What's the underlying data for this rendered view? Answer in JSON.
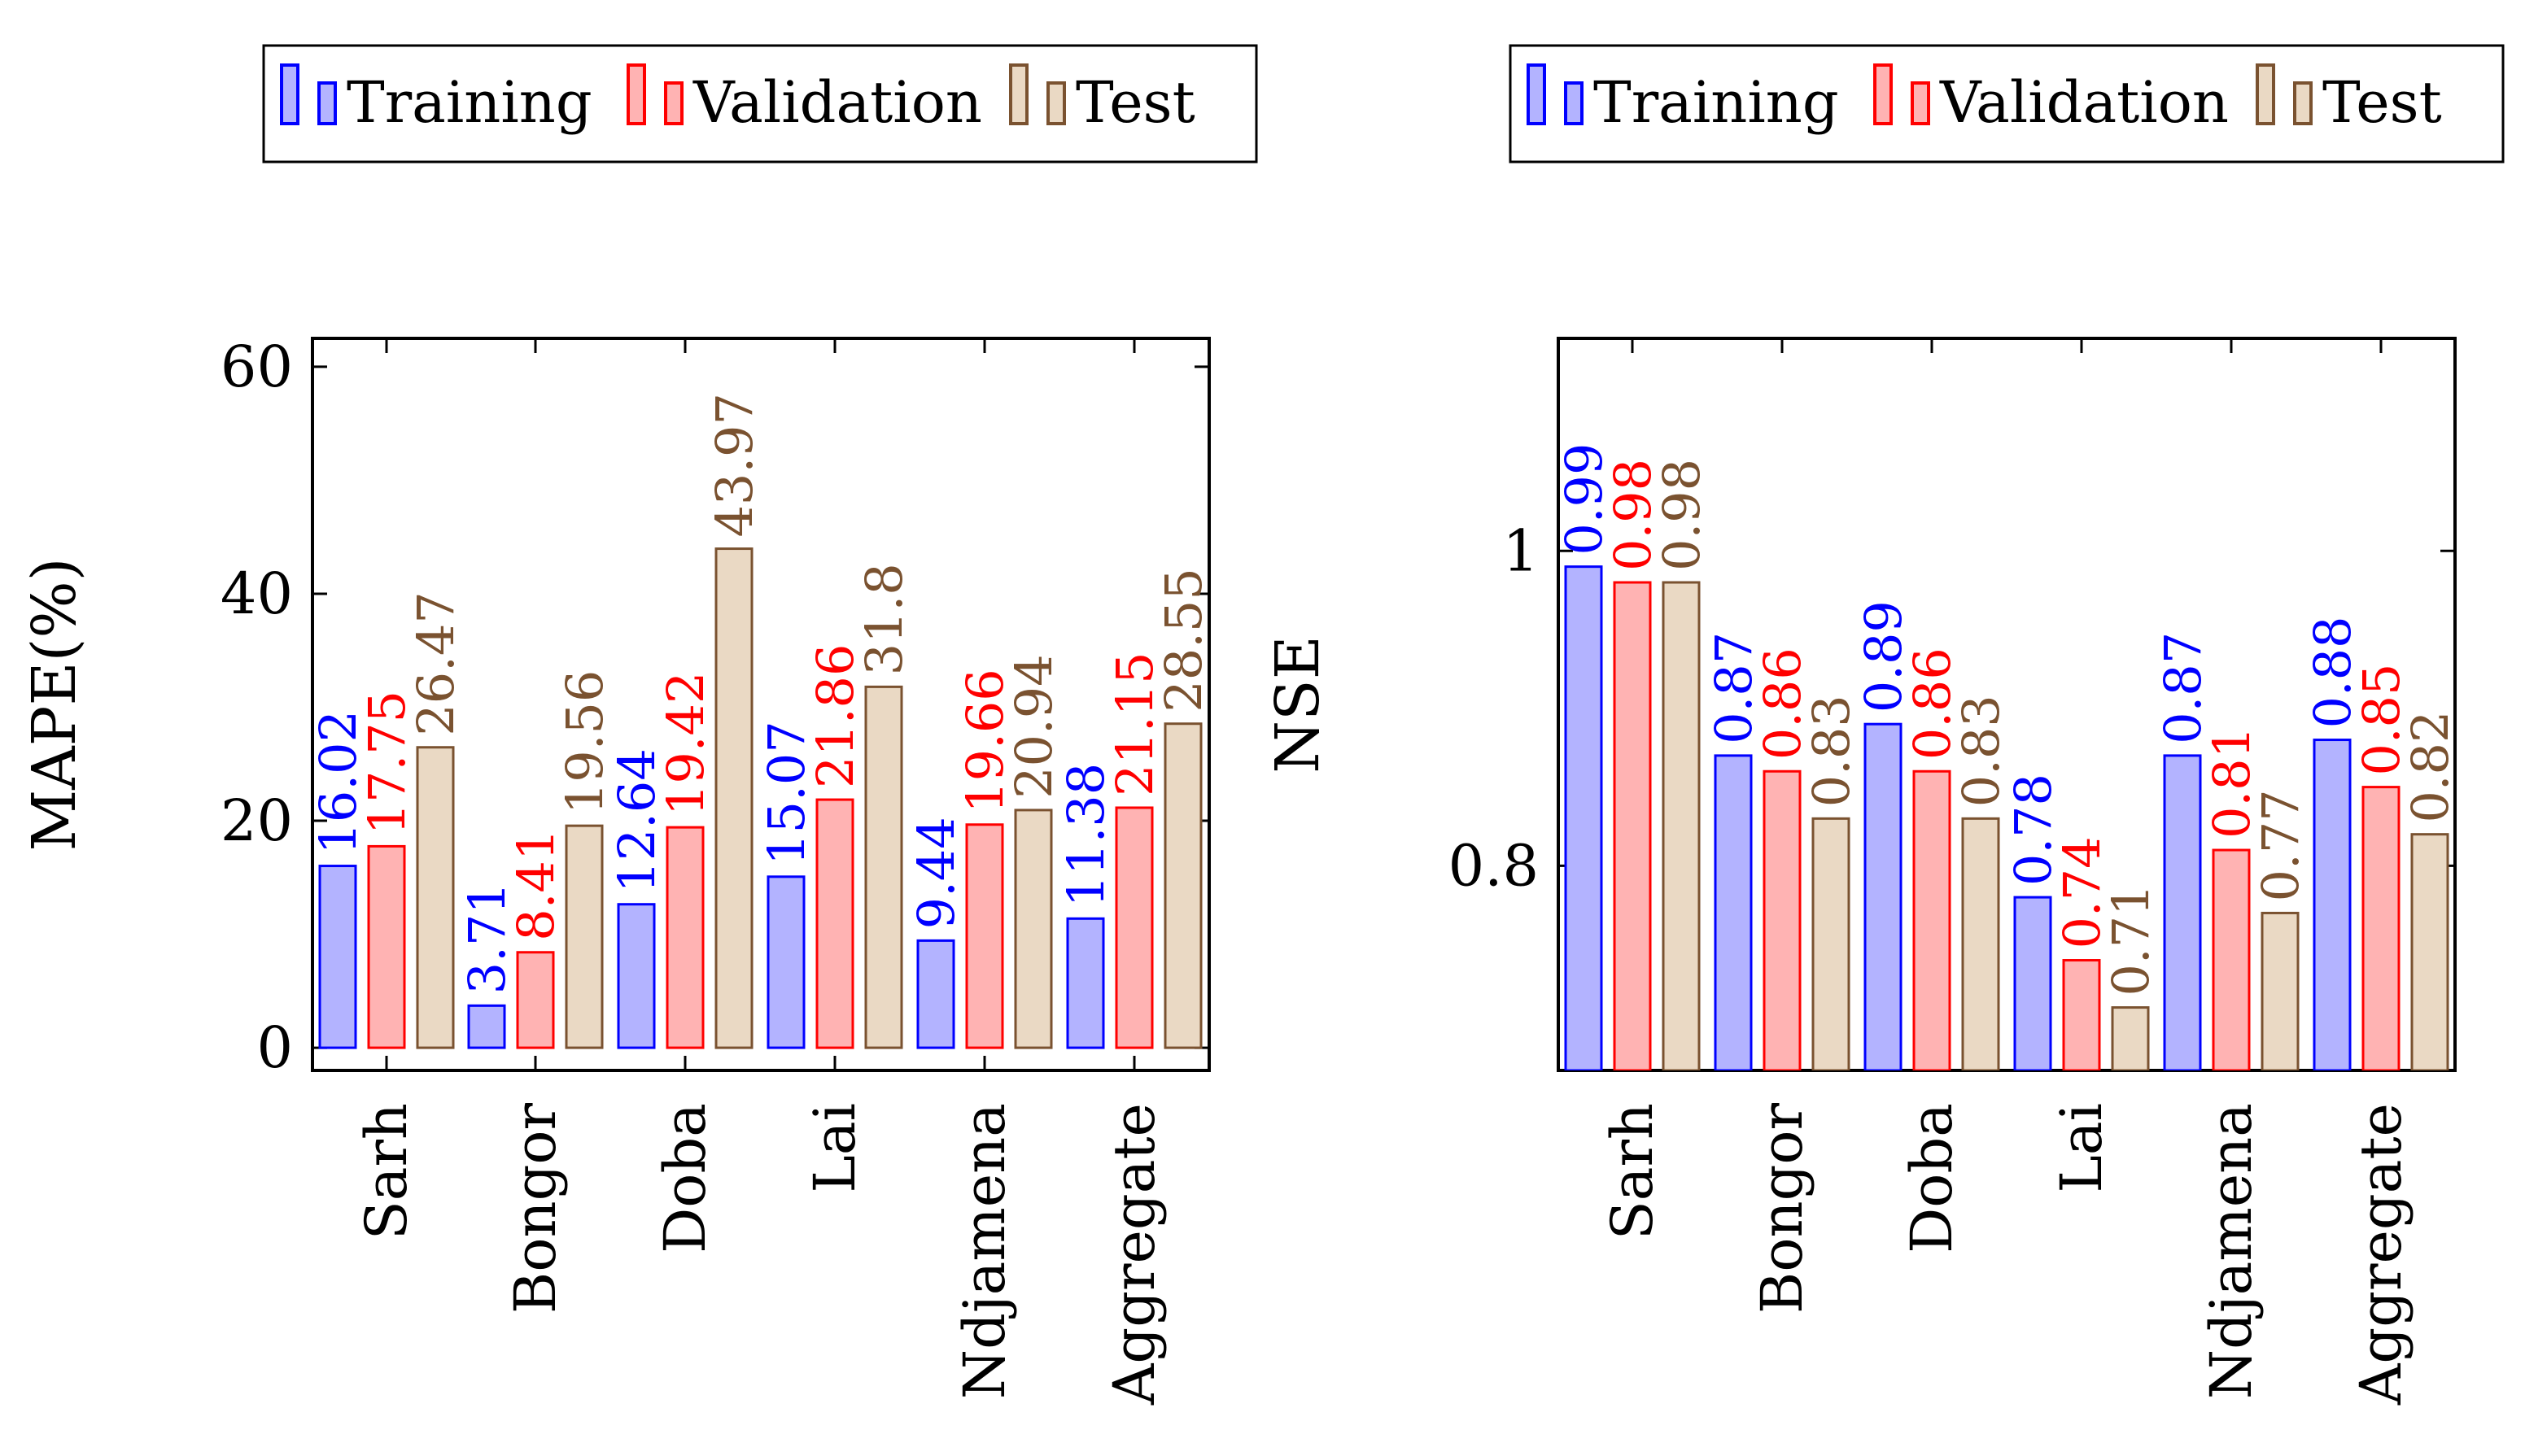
{
  "colors": {
    "training_fill": "#b3b3ff",
    "training_stroke": "#0000ff",
    "validation_fill": "#ffb3b3",
    "validation_stroke": "#ff0000",
    "test_fill": "#ead9c4",
    "test_stroke": "#7a5230",
    "axis": "#000000"
  },
  "chart_data": [
    {
      "type": "bar",
      "title": "",
      "xlabel": "",
      "ylabel": "MAPE(%)",
      "ylim": [
        -2,
        62.5
      ],
      "yticks": [
        0,
        20,
        40,
        60
      ],
      "ytick_labels": [
        "0",
        "20",
        "40",
        "60"
      ],
      "categories": [
        "Sarh",
        "Bongor",
        "Doba",
        "Lai",
        "Ndjamena",
        "Aggregate"
      ],
      "legend": [
        "Training",
        "Validation",
        "Test"
      ],
      "legend_placement": "top-center",
      "series": [
        {
          "name": "Training",
          "values": [
            16.02,
            3.71,
            12.64,
            15.07,
            9.44,
            11.38
          ],
          "labels": [
            "16.02",
            "3.71",
            "12.64",
            "15.07",
            "9.44",
            "11.38"
          ]
        },
        {
          "name": "Validation",
          "values": [
            17.75,
            8.41,
            19.42,
            21.86,
            19.66,
            21.15
          ],
          "labels": [
            "17.75",
            "8.41",
            "19.42",
            "21.86",
            "19.66",
            "21.15"
          ]
        },
        {
          "name": "Test",
          "values": [
            26.47,
            19.56,
            43.97,
            31.8,
            20.94,
            28.55
          ],
          "labels": [
            "26.47",
            "19.56",
            "43.97",
            "31.8",
            "20.94",
            "28.55"
          ]
        }
      ]
    },
    {
      "type": "bar",
      "title": "",
      "xlabel": "",
      "ylabel": "NSE",
      "ylim": [
        0.67,
        1.135
      ],
      "yticks": [
        0.8,
        1.0
      ],
      "ytick_labels": [
        "0.8",
        "1"
      ],
      "categories": [
        "Sarh",
        "Bongor",
        "Doba",
        "Lai",
        "Ndjamena",
        "Aggregate"
      ],
      "legend": [
        "Training",
        "Validation",
        "Test"
      ],
      "legend_placement": "top-center",
      "series": [
        {
          "name": "Training",
          "values": [
            0.99,
            0.87,
            0.89,
            0.78,
            0.87,
            0.88
          ],
          "labels": [
            "0.99",
            "0.87",
            "0.89",
            "0.78",
            "0.87",
            "0.88"
          ]
        },
        {
          "name": "Validation",
          "values": [
            0.98,
            0.86,
            0.86,
            0.74,
            0.81,
            0.85
          ],
          "labels": [
            "0.98",
            "0.86",
            "0.86",
            "0.74",
            "0.81",
            "0.85"
          ]
        },
        {
          "name": "Test",
          "values": [
            0.98,
            0.83,
            0.83,
            0.71,
            0.77,
            0.82
          ],
          "labels": [
            "0.98",
            "0.83",
            "0.83",
            "0.71",
            "0.77",
            "0.82"
          ]
        }
      ]
    }
  ]
}
